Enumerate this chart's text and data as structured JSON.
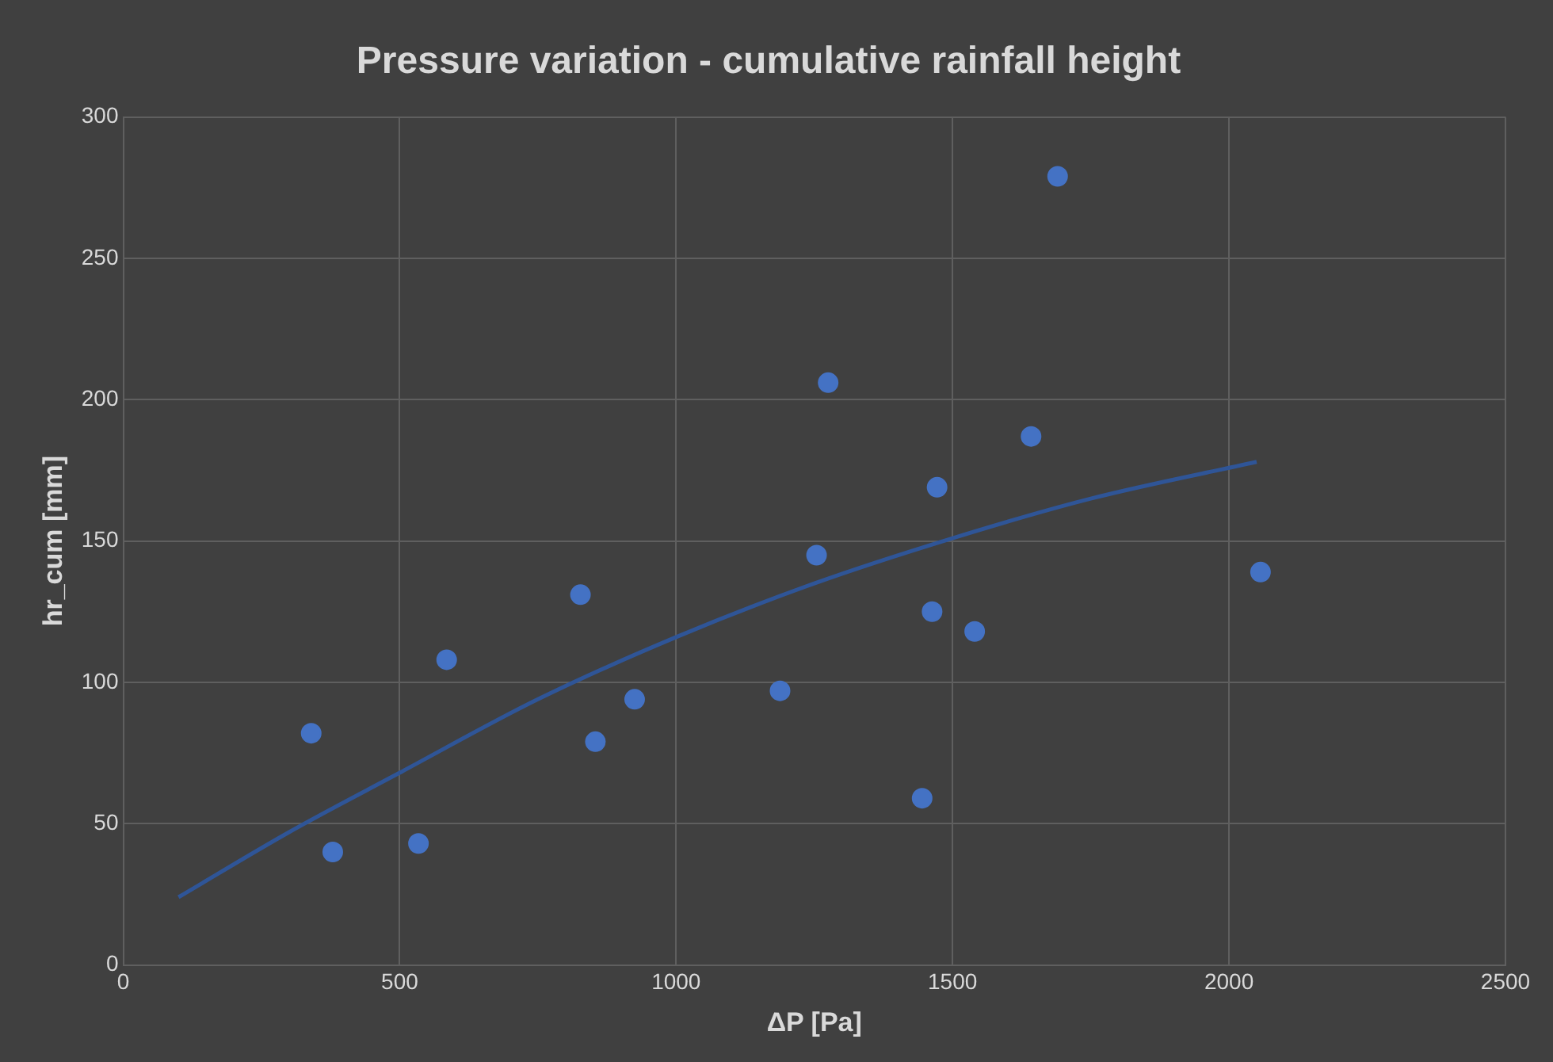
{
  "chart_data": {
    "type": "scatter",
    "title": "Pressure variation - cumulative rainfall height",
    "xlabel": "ΔP [Pa]",
    "ylabel": "hr_cum [mm]",
    "xlim": [
      0,
      2500
    ],
    "xticks": [
      0,
      500,
      1000,
      1500,
      2000,
      2500
    ],
    "ylim": [
      0,
      300
    ],
    "yticks": [
      0,
      50,
      100,
      150,
      200,
      250,
      300
    ],
    "grid": true,
    "series": [
      {
        "marker": "circle",
        "color": "#4472c4",
        "x": [
          340,
          379,
          534,
          585,
          827,
          854,
          925,
          1188,
          1254,
          1275,
          1445,
          1463,
          1472,
          1540,
          1642,
          1690,
          2057
        ],
        "values": [
          82,
          40,
          43,
          108,
          131,
          79,
          94,
          97,
          145,
          206,
          59,
          125,
          169,
          118,
          187,
          279,
          139
        ]
      },
      {
        "type": "line",
        "marker": "none",
        "color": "#2f5597",
        "x": [
          100,
          300,
          500,
          750,
          1000,
          1250,
          1500,
          1750,
          2050
        ],
        "values": [
          24,
          47,
          68,
          94,
          116,
          135,
          151,
          165,
          178
        ]
      }
    ]
  }
}
